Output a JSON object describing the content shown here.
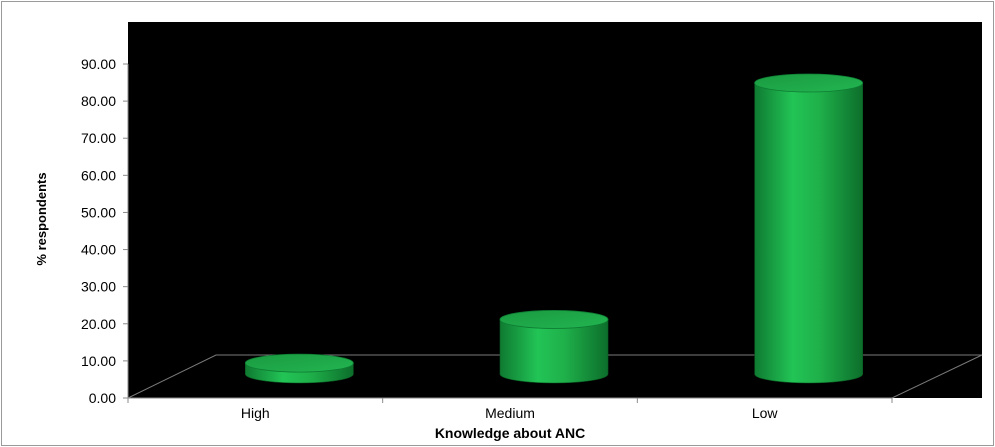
{
  "chart_data": {
    "type": "bar",
    "style": "3d-cylinder",
    "categories": [
      "High",
      "Medium",
      "Low"
    ],
    "values": [
      3,
      15,
      80
    ],
    "xlabel": "Knowledge about ANC",
    "ylabel": "% respondents",
    "ylim": [
      0,
      90
    ],
    "yticks": [
      "0.00",
      "10.00",
      "20.00",
      "30.00",
      "40.00",
      "50.00",
      "60.00",
      "70.00",
      "80.00",
      "90.00"
    ],
    "grid": false,
    "legend": "none",
    "colors": {
      "bar": "#1fb04a",
      "plot_background": "#000000",
      "page_background": "#ffffff"
    }
  }
}
